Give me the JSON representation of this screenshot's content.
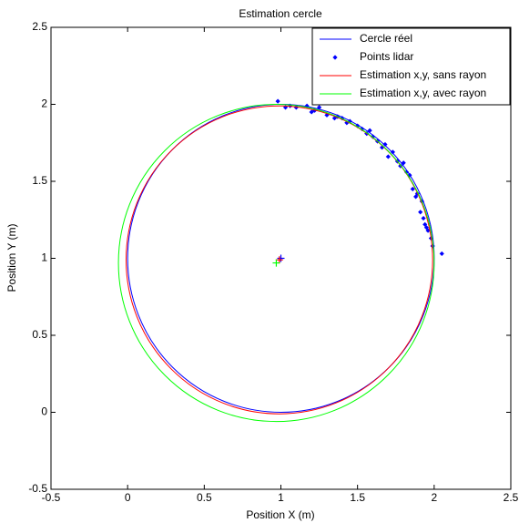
{
  "chart_data": {
    "type": "line",
    "title": "Estimation cercle",
    "xlabel": "Position X (m)",
    "ylabel": "Position Y (m)",
    "xlim": [
      -0.5,
      2.5
    ],
    "ylim": [
      -0.5,
      2.5
    ],
    "xticks": [
      -0.5,
      0,
      0.5,
      1,
      1.5,
      2,
      2.5
    ],
    "yticks": [
      -0.5,
      0,
      0.5,
      1,
      1.5,
      2,
      2.5
    ],
    "legend": "upper right",
    "series": [
      {
        "name": "Cercle réel",
        "color": "#0000ff",
        "center": [
          1,
          1
        ],
        "radius": 1
      },
      {
        "name": "Points lidar",
        "color": "#0000ff",
        "marker": "diamond",
        "x": [
          0.98,
          1.03,
          1.06,
          1.1,
          1.17,
          1.2,
          1.22,
          1.25,
          1.3,
          1.35,
          1.37,
          1.4,
          1.43,
          1.45,
          1.5,
          1.53,
          1.56,
          1.58,
          1.6,
          1.63,
          1.66,
          1.68,
          1.7,
          1.73,
          1.76,
          1.78,
          1.8,
          1.82,
          1.84,
          1.86,
          1.88,
          1.89,
          1.91,
          1.92,
          1.93,
          1.94,
          1.95,
          1.96,
          1.98,
          1.99,
          2.05
        ],
        "y": [
          2.02,
          1.98,
          1.99,
          1.98,
          1.99,
          1.95,
          1.96,
          1.98,
          1.93,
          1.91,
          1.92,
          1.91,
          1.88,
          1.89,
          1.86,
          1.84,
          1.81,
          1.83,
          1.79,
          1.76,
          1.72,
          1.74,
          1.66,
          1.69,
          1.63,
          1.6,
          1.62,
          1.56,
          1.54,
          1.45,
          1.4,
          1.42,
          1.3,
          1.37,
          1.26,
          1.22,
          1.2,
          1.18,
          1.13,
          1.08,
          1.03
        ]
      },
      {
        "name": "Estimation x,y, sans rayon",
        "color": "#ff0000",
        "center": [
          0.99,
          0.99
        ],
        "radius": 1
      },
      {
        "name": "Estimation x,y, avec rayon",
        "color": "#00ff00",
        "center": [
          0.97,
          0.97
        ],
        "radius": 1.03
      }
    ]
  }
}
